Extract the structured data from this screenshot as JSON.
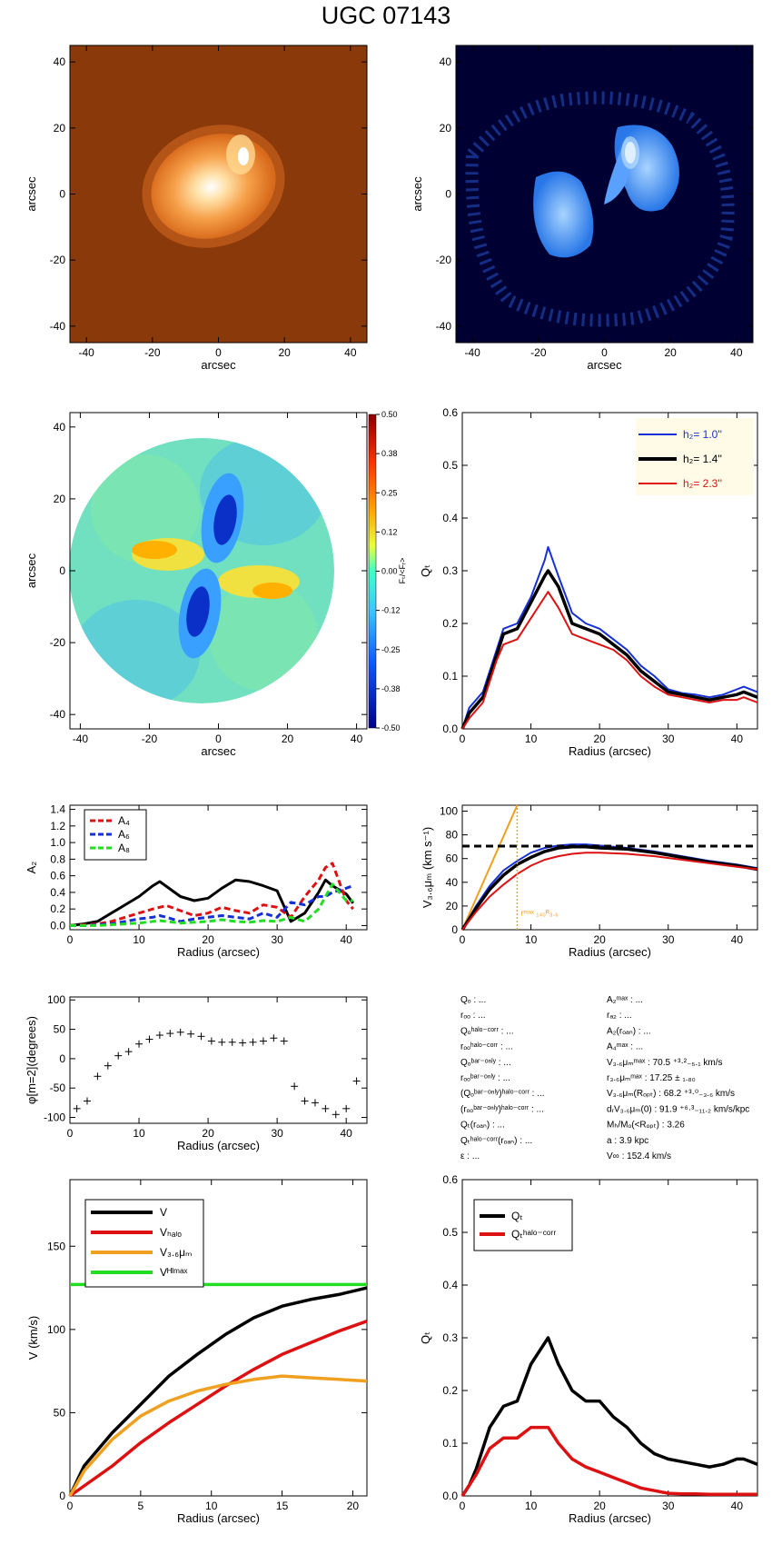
{
  "title": "UGC 07143",
  "colors": {
    "black": "#000000",
    "red": "#dd1111",
    "blue": "#1530d8",
    "green": "#22dd22",
    "orange": "#f0a020",
    "brown": "#8a3a0a",
    "navy": "#000033",
    "legend_bg": "#fffbe6"
  },
  "panels": {
    "image_left": {
      "xlabel": "arcsec",
      "ylabel": "arcsec",
      "xticks": [
        "-40",
        "-20",
        "0",
        "20",
        "40"
      ],
      "yticks": [
        "40",
        "20",
        "0",
        "-20",
        "-40"
      ]
    },
    "image_right": {
      "xlabel": "arcsec",
      "ylabel": "arcsec",
      "xticks": [
        "-40",
        "-20",
        "0",
        "20",
        "40"
      ],
      "yticks": [
        "40",
        "20",
        "0",
        "-20",
        "-40"
      ]
    },
    "force_map": {
      "xlabel": "arcsec",
      "ylabel": "arcsec",
      "xticks": [
        "-40",
        "-20",
        "0",
        "20",
        "40"
      ],
      "yticks": [
        "40",
        "20",
        "0",
        "-20",
        "-40"
      ],
      "colorbar_ticks": [
        "0.50",
        "0.38",
        "0.25",
        "0.12",
        "0.00",
        "-0.12",
        "-0.25",
        "-0.38",
        "-0.50"
      ],
      "colorbar_label": "Fₜ/<Fᵣ>"
    },
    "qt": {
      "xlabel": "Radius (arcsec)",
      "ylabel": "Qₜ",
      "xticks": [
        "0",
        "10",
        "20",
        "30",
        "40"
      ],
      "yticks": [
        "0.0",
        "0.1",
        "0.2",
        "0.3",
        "0.4",
        "0.5",
        "0.6"
      ],
      "legend": [
        "h₂=  1.0''",
        "h₂=  1.4''",
        "h₂=  2.3''"
      ]
    },
    "amps": {
      "xlabel": "Radius (arcsec)",
      "ylabel": "A₂",
      "xticks": [
        "0",
        "10",
        "20",
        "30",
        "40"
      ],
      "yticks": [
        "0.0",
        "0.2",
        "0.4",
        "0.6",
        "0.8",
        "1.0",
        "1.2",
        "1.4"
      ],
      "legend": [
        "A₄",
        "A₆",
        "A₈"
      ]
    },
    "rot": {
      "xlabel": "Radius (arcsec)",
      "ylabel": "V₃.₆μₘ (km s⁻¹)",
      "xticks": [
        "0",
        "10",
        "20",
        "30",
        "40"
      ],
      "yticks": [
        "0",
        "20",
        "40",
        "60",
        "80",
        "100"
      ],
      "annotation": "rᵐᵃˣ ₁₄₀ᴿ₃.₆"
    },
    "phase": {
      "xlabel": "Radius (arcsec)",
      "ylabel": "φ[m=2](degrees)",
      "xticks": [
        "0",
        "10",
        "20",
        "30",
        "40"
      ],
      "yticks": [
        "100",
        "50",
        "0",
        "-50",
        "-100"
      ]
    },
    "vdecomp": {
      "xlabel": "Radius (arcsec)",
      "ylabel": "V (km/s)",
      "xticks": [
        "0",
        "5",
        "10",
        "15",
        "20"
      ],
      "yticks": [
        "0",
        "50",
        "100",
        "150"
      ],
      "legend": [
        "V",
        "Vₕₐₗₒ",
        "V₃.₆μₘ",
        "Vᴴᴵᵐᵃˣ"
      ]
    },
    "qt_corr": {
      "xlabel": "Radius (arcsec)",
      "ylabel": "Qₜ",
      "xticks": [
        "0",
        "10",
        "20",
        "30",
        "40"
      ],
      "yticks": [
        "0.0",
        "0.1",
        "0.2",
        "0.3",
        "0.4",
        "0.5",
        "0.6"
      ],
      "legend": [
        "Qₜ",
        "Qₜʰᵃˡᵒ⁻ᶜᵒʳʳ"
      ]
    }
  },
  "info_left": [
    "Qₒ : ...",
    "rₒₒ : ...",
    "Qₒʰᵃˡᵒ⁻ᶜᵒʳʳ : ...",
    "rₒₒʰᵃˡᵒ⁻ᶜᵒʳʳ : ...",
    "Qₒᵇᵃʳ⁻ᵒⁿˡʸ : ...",
    "rₒₒᵇᵃʳ⁻ᵒⁿˡʸ : ...",
    "(Qₒᵇᵃʳ⁻ᵒⁿˡʸ)ʰᵃˡᵒ⁻ᶜᵒʳʳ : ...",
    "(rₒₒᵇᵃʳ⁻ᵒⁿˡʸ)ʰᵃˡᵒ⁻ᶜᵒʳʳ : ...",
    "Qₜ(rₒₐₙ) : ...",
    "Qₜʰᵃˡᵒ⁻ᶜᵒʳʳ(rₒₐₙ) : ...",
    "ε : ..."
  ],
  "info_right": [
    "A₂ᵐᵃˣ : ...",
    "rₐ₂ : ...",
    "A₂(rₒₐₙ) : ...",
    "A₄ᵐᵃˣ : ...",
    "V₃.₆μₘᵐᵃˣ :  70.5 ⁺³·²₋₅.₁ km/s",
    "r₃.₆μₘᵐᵃˣ :  17.25 ± ₁.₈₀",
    "V₃.₆μₘ(Rₒₚₜ) :  68.2 ⁺³·⁰₋₃.₆ km/s",
    "dᵣV₃.₆μₘ(0) :  91.9 ⁺⁶·³₋₁₁.₂ km/s/kpc",
    "Mₕ/Mₒ(<Rₒₚₜ) :  3.26",
    "a :   3.9 kpc",
    "V∞ :  152.4 km/s"
  ],
  "chart_data": [
    {
      "type": "heatmap",
      "panel": "image_left",
      "xlabel": "arcsec",
      "ylabel": "arcsec",
      "xlim": [
        -45,
        45
      ],
      "ylim": [
        -45,
        45
      ],
      "colormap": "brown-orange-white"
    },
    {
      "type": "heatmap",
      "panel": "image_right",
      "xlabel": "arcsec",
      "ylabel": "arcsec",
      "xlim": [
        -45,
        45
      ],
      "ylim": [
        -45,
        45
      ],
      "colormap": "black-blue-white"
    },
    {
      "type": "heatmap",
      "panel": "force_map",
      "xlabel": "arcsec",
      "ylabel": "arcsec",
      "xlim": [
        -43,
        43
      ],
      "ylim": [
        -43,
        43
      ],
      "colorbar_range": [
        -0.5,
        0.5
      ]
    },
    {
      "type": "line",
      "panel": "qt",
      "xlabel": "Radius (arcsec)",
      "ylabel": "Qₜ",
      "xlim": [
        0,
        43
      ],
      "ylim": [
        0,
        0.6
      ],
      "x": [
        0,
        1,
        3,
        5,
        6,
        8,
        10,
        12,
        12.5,
        14,
        16,
        18,
        20,
        22,
        24,
        26,
        28,
        30,
        32,
        34,
        36,
        38,
        40,
        41,
        43
      ],
      "series": [
        {
          "name": "h₂=  1.0''",
          "color": "blue",
          "values": [
            0.0,
            0.04,
            0.07,
            0.15,
            0.19,
            0.2,
            0.25,
            0.32,
            0.345,
            0.29,
            0.22,
            0.2,
            0.19,
            0.17,
            0.15,
            0.12,
            0.1,
            0.075,
            0.068,
            0.065,
            0.06,
            0.065,
            0.075,
            0.08,
            0.07
          ]
        },
        {
          "name": "h₂=  1.4''",
          "color": "black",
          "values": [
            0.0,
            0.03,
            0.06,
            0.14,
            0.18,
            0.19,
            0.24,
            0.29,
            0.3,
            0.27,
            0.2,
            0.19,
            0.18,
            0.16,
            0.14,
            0.11,
            0.09,
            0.07,
            0.065,
            0.06,
            0.055,
            0.06,
            0.065,
            0.07,
            0.06
          ]
        },
        {
          "name": "h₂=  2.3''",
          "color": "red",
          "values": [
            0.0,
            0.02,
            0.05,
            0.13,
            0.16,
            0.17,
            0.21,
            0.25,
            0.26,
            0.23,
            0.18,
            0.17,
            0.16,
            0.15,
            0.13,
            0.1,
            0.08,
            0.065,
            0.06,
            0.055,
            0.05,
            0.055,
            0.055,
            0.06,
            0.05
          ]
        }
      ]
    },
    {
      "type": "line",
      "panel": "amps",
      "xlabel": "Radius (arcsec)",
      "ylabel": "A₂",
      "xlim": [
        0,
        43
      ],
      "ylim": [
        -0.05,
        1.45
      ],
      "x": [
        0,
        2,
        4,
        6,
        8,
        10,
        12,
        13,
        14,
        16,
        18,
        20,
        22,
        24,
        26,
        28,
        30,
        32,
        34,
        36,
        37,
        38,
        40,
        41
      ],
      "series": [
        {
          "name": "A₂",
          "color": "black",
          "dash": false,
          "values": [
            0,
            0.02,
            0.05,
            0.15,
            0.25,
            0.35,
            0.48,
            0.53,
            0.47,
            0.35,
            0.3,
            0.33,
            0.45,
            0.55,
            0.53,
            0.48,
            0.42,
            0.05,
            0.15,
            0.4,
            0.55,
            0.48,
            0.38,
            0.27
          ]
        },
        {
          "name": "A₄",
          "color": "red",
          "dash": true,
          "values": [
            0,
            0.01,
            0.02,
            0.05,
            0.1,
            0.15,
            0.2,
            0.22,
            0.24,
            0.18,
            0.12,
            0.15,
            0.22,
            0.18,
            0.15,
            0.25,
            0.22,
            0.1,
            0.35,
            0.55,
            0.7,
            0.75,
            0.3,
            0.2
          ]
        },
        {
          "name": "A₆",
          "color": "blue",
          "dash": true,
          "values": [
            0,
            0,
            0.01,
            0.02,
            0.05,
            0.08,
            0.1,
            0.12,
            0.1,
            0.05,
            0.08,
            0.1,
            0.12,
            0.1,
            0.08,
            0.15,
            0.1,
            0.28,
            0.25,
            0.35,
            0.35,
            0.4,
            0.45,
            0.48
          ]
        },
        {
          "name": "A₈",
          "color": "green",
          "dash": true,
          "values": [
            0,
            0,
            0,
            0.01,
            0.02,
            0.03,
            0.05,
            0.06,
            0.05,
            0.03,
            0.04,
            0.05,
            0.07,
            0.05,
            0.04,
            0.06,
            0.05,
            0.1,
            0.05,
            0.2,
            0.35,
            0.5,
            0.3,
            0.3
          ]
        }
      ]
    },
    {
      "type": "line",
      "panel": "rot",
      "xlabel": "Radius (arcsec)",
      "ylabel": "V₃.₆μₘ (km s⁻¹)",
      "xlim": [
        0,
        43
      ],
      "ylim": [
        0,
        105
      ],
      "x": [
        0,
        2,
        4,
        6,
        8,
        10,
        12,
        14,
        16,
        18,
        20,
        24,
        28,
        32,
        36,
        40,
        43
      ],
      "series": [
        {
          "color": "blue",
          "values": [
            0,
            20,
            37,
            50,
            58,
            65,
            69,
            71,
            72,
            72,
            71,
            69,
            66,
            62,
            58,
            55,
            52
          ]
        },
        {
          "color": "black",
          "values": [
            0,
            18,
            34,
            46,
            55,
            61,
            66,
            69,
            70,
            70,
            69,
            68,
            65,
            61,
            57,
            54,
            51
          ]
        },
        {
          "color": "red",
          "values": [
            0,
            15,
            28,
            38,
            47,
            54,
            59,
            62,
            64,
            65,
            65,
            64,
            62,
            59,
            56,
            53,
            51
          ]
        }
      ],
      "hline": 70.5,
      "vline": 8.0,
      "slope_line": {
        "x": [
          0,
          8
        ],
        "y": [
          0,
          105
        ]
      }
    },
    {
      "type": "scatter",
      "panel": "phase",
      "xlabel": "Radius (arcsec)",
      "ylabel": "φ[m=2](degrees)",
      "xlim": [
        0,
        43
      ],
      "ylim": [
        -110,
        105
      ],
      "x": [
        1,
        2.5,
        4,
        5.5,
        7,
        8.5,
        10,
        11.5,
        13,
        14.5,
        16,
        17.5,
        19,
        20.5,
        22,
        23.5,
        25,
        26.5,
        28,
        29.5,
        31,
        32.5,
        34,
        35.5,
        37,
        38.5,
        40,
        41.5
      ],
      "y": [
        -85,
        -72,
        -30,
        -12,
        5,
        12,
        25,
        33,
        40,
        43,
        45,
        42,
        38,
        30,
        28,
        28,
        27,
        28,
        30,
        35,
        30,
        -47,
        -72,
        -75,
        -85,
        -95,
        -85,
        -38
      ]
    },
    {
      "type": "line",
      "panel": "vdecomp",
      "xlabel": "Radius (arcsec)",
      "ylabel": "V (km/s)",
      "xlim": [
        0,
        21
      ],
      "ylim": [
        0,
        190
      ],
      "series": [
        {
          "name": "V",
          "color": "black",
          "x": [
            0,
            1,
            3,
            5,
            7,
            9,
            11,
            13,
            15,
            17,
            19,
            21
          ],
          "values": [
            0,
            18,
            38,
            55,
            72,
            85,
            97,
            107,
            114,
            118,
            121,
            125
          ]
        },
        {
          "name": "Vₕₐₗₒ",
          "color": "red",
          "x": [
            0,
            1,
            3,
            5,
            7,
            9,
            11,
            13,
            15,
            17,
            19,
            21
          ],
          "values": [
            0,
            6,
            18,
            32,
            44,
            55,
            66,
            76,
            85,
            92,
            99,
            105
          ]
        },
        {
          "name": "V₃.₆μₘ",
          "color": "orange",
          "x": [
            0,
            1,
            3,
            5,
            7,
            9,
            11,
            13,
            15,
            17,
            19,
            21
          ],
          "values": [
            0,
            15,
            34,
            48,
            57,
            63,
            67,
            70,
            72,
            71,
            70,
            69
          ]
        },
        {
          "name": "Vᴴᴵᵐᵃˣ",
          "color": "green",
          "x": [
            0,
            21
          ],
          "values": [
            127,
            127
          ]
        }
      ]
    },
    {
      "type": "line",
      "panel": "qt_corr",
      "xlabel": "Radius (arcsec)",
      "ylabel": "Qₜ",
      "xlim": [
        0,
        43
      ],
      "ylim": [
        0,
        0.6
      ],
      "x": [
        0,
        1,
        2,
        4,
        5,
        6,
        8,
        10,
        12,
        12.5,
        14,
        16,
        18,
        20,
        22,
        24,
        26,
        28,
        30,
        32,
        34,
        36,
        38,
        40,
        41,
        43
      ],
      "series": [
        {
          "name": "Qₜ",
          "color": "black",
          "values": [
            0.0,
            0.02,
            0.05,
            0.13,
            0.15,
            0.17,
            0.18,
            0.25,
            0.29,
            0.3,
            0.25,
            0.2,
            0.18,
            0.18,
            0.15,
            0.13,
            0.1,
            0.08,
            0.07,
            0.065,
            0.06,
            0.055,
            0.06,
            0.07,
            0.07,
            0.06
          ]
        },
        {
          "name": "Qₜʰᵃˡᵒ⁻ᶜᵒʳʳ",
          "color": "red",
          "values": [
            0.0,
            0.02,
            0.04,
            0.09,
            0.1,
            0.11,
            0.11,
            0.13,
            0.13,
            0.13,
            0.1,
            0.07,
            0.055,
            0.045,
            0.035,
            0.025,
            0.015,
            0.01,
            0.005,
            0.004,
            0.004,
            0.003,
            0.003,
            0.003,
            0.003,
            0.003
          ]
        }
      ]
    }
  ]
}
